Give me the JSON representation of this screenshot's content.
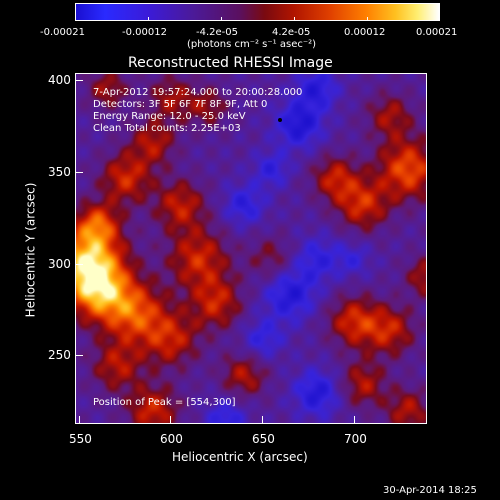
{
  "colorbar": {
    "ticks": [
      "-0.00021",
      "-0.00012",
      "-4.2e-05",
      "4.2e-05",
      "0.00012",
      "0.00021"
    ],
    "unit_label": "(photons cm⁻² s⁻¹ asec⁻²)"
  },
  "chart_data": {
    "type": "heatmap",
    "title": "Reconstructed RHESSI Image",
    "xlabel": "Heliocentric X (arcsec)",
    "ylabel": "Heliocentric Y (arcsec)",
    "xlim": [
      548,
      740
    ],
    "ylim": [
      208,
      403
    ],
    "x_ticks": [
      "550",
      "600",
      "650",
      "700"
    ],
    "y_ticks": [
      "250",
      "300",
      "350",
      "400"
    ],
    "color_range": [
      -0.00021,
      0.00021
    ],
    "annotations": [
      "7-Apr-2012 19:57:24.000 to 20:00:28.000",
      "Detectors: 3F 5F 6F 7F 8F 9F, Att 0",
      "Energy Range: 12.0 - 25.0 keV",
      "Clean     Total counts: 2.25E+03"
    ],
    "peak_label": "Position of Peak = [554,300]",
    "peak": [
      554,
      300
    ],
    "marker": [
      673,
      372
    ]
  },
  "footer": {
    "date": "30-Apr-2014 18:25"
  }
}
